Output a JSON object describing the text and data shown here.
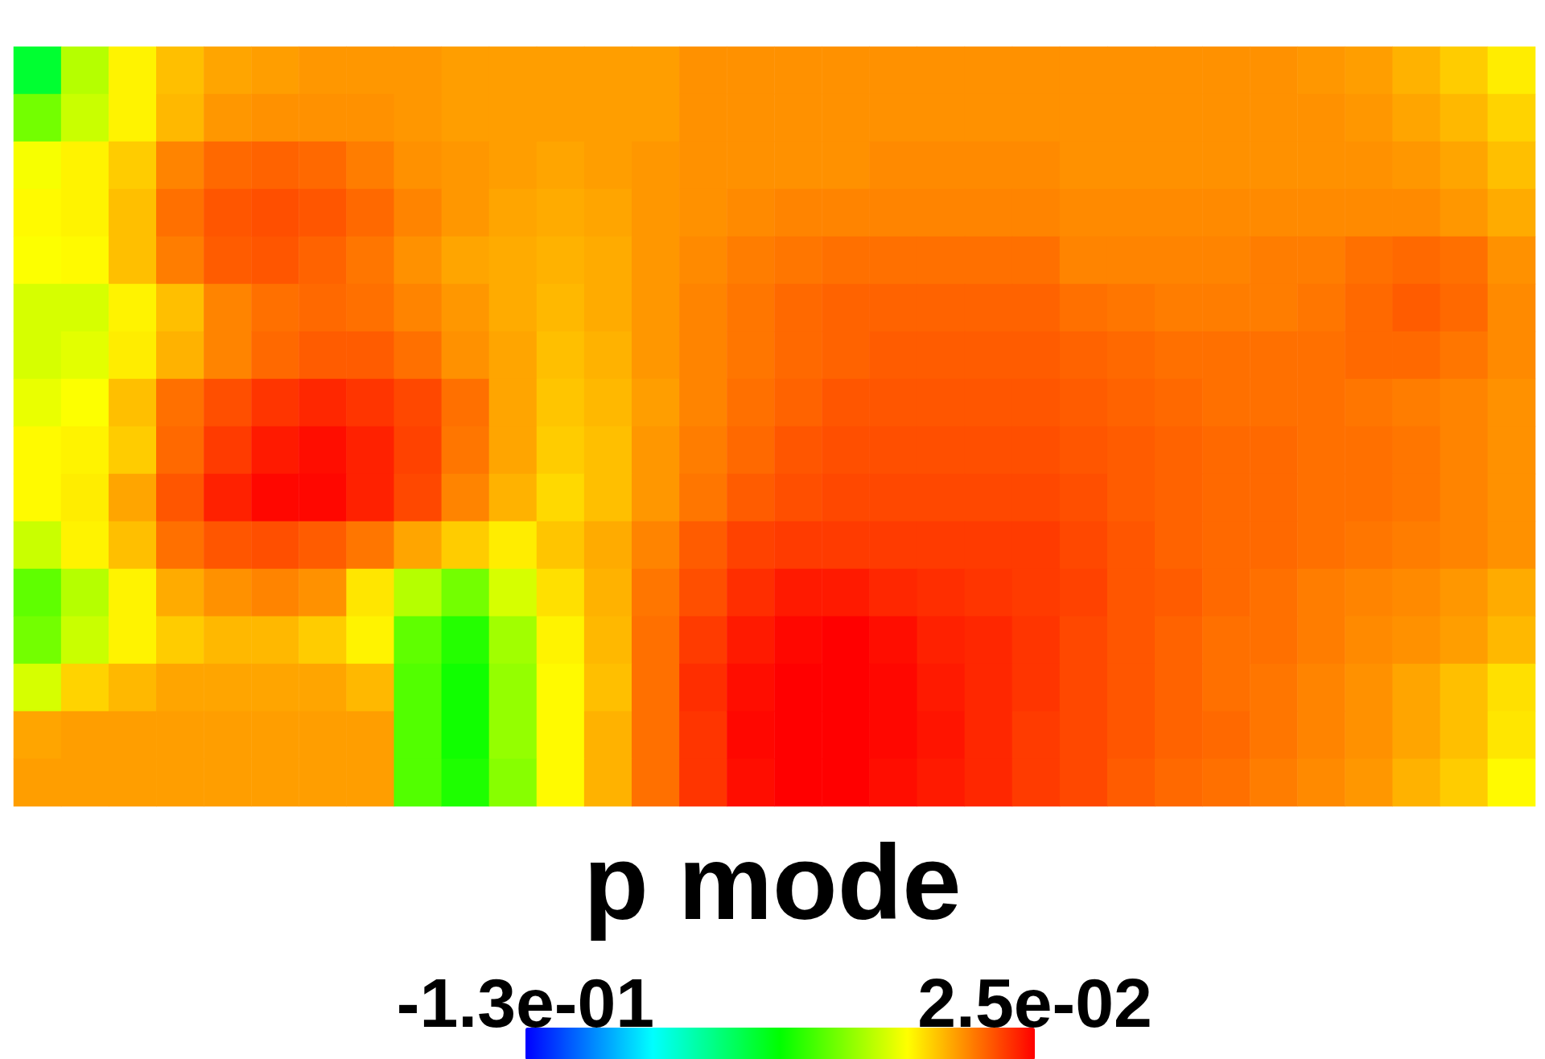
{
  "chart_data": {
    "type": "heatmap",
    "clabel": "p mode",
    "clim": [
      -0.13,
      0.025
    ],
    "cticks": [
      {
        "value": -0.13,
        "label": "-1.3e-01"
      },
      {
        "value": 0.025,
        "label": "2.5e-02"
      }
    ],
    "categories": [
      null,
      null,
      null,
      null,
      null,
      null,
      null,
      null,
      null,
      null,
      null,
      null,
      null,
      null,
      null,
      null,
      null,
      null,
      null,
      null,
      null,
      null,
      null,
      null,
      null,
      null,
      null,
      null,
      null,
      null,
      null,
      null
    ],
    "y_categories": [
      null,
      null,
      null,
      null,
      null,
      null,
      null,
      null,
      null,
      null,
      null,
      null,
      null,
      null,
      null,
      null
    ],
    "cells": [
      [
        -0.06,
        -0.025,
        -0.012,
        -0.004,
        0,
        0.001,
        0.002,
        0.002,
        0.002,
        0.001,
        0.001,
        0.001,
        0.001,
        0.001,
        0.003,
        0.003,
        0.003,
        0.003,
        0.003,
        0.003,
        0.003,
        0.003,
        0.003,
        0.003,
        0.003,
        0.003,
        0.003,
        0.002,
        0.001,
        -0.002,
        -0.006,
        -0.011
      ],
      [
        -0.035,
        -0.022,
        -0.012,
        -0.003,
        0.002,
        0.003,
        0.003,
        0.003,
        0.002,
        0.001,
        0.001,
        0.001,
        0.001,
        0.001,
        0.003,
        0.003,
        0.003,
        0.003,
        0.003,
        0.003,
        0.003,
        0.003,
        0.003,
        0.003,
        0.003,
        0.003,
        0.003,
        0.003,
        0.002,
        0,
        -0.003,
        -0.007
      ],
      [
        -0.015,
        -0.012,
        -0.006,
        0.005,
        0.009,
        0.01,
        0.009,
        0.006,
        0.003,
        0.002,
        0.001,
        0,
        0.001,
        0.002,
        0.003,
        0.003,
        0.003,
        0.003,
        0.004,
        0.004,
        0.004,
        0.004,
        0.003,
        0.003,
        0.003,
        0.003,
        0.003,
        0.003,
        0.003,
        0.002,
        0,
        -0.004
      ],
      [
        -0.013,
        -0.012,
        -0.004,
        0.008,
        0.012,
        0.013,
        0.012,
        0.009,
        0.005,
        0.002,
        0,
        -0.001,
        0,
        0.002,
        0.003,
        0.004,
        0.005,
        0.005,
        0.005,
        0.005,
        0.005,
        0.005,
        0.004,
        0.004,
        0.004,
        0.004,
        0.004,
        0.004,
        0.004,
        0.004,
        0.002,
        -0.001
      ],
      [
        -0.014,
        -0.013,
        -0.004,
        0.006,
        0.011,
        0.012,
        0.01,
        0.007,
        0.003,
        0,
        -0.001,
        -0.002,
        -0.001,
        0.002,
        0.004,
        0.006,
        0.007,
        0.008,
        0.008,
        0.008,
        0.008,
        0.008,
        0.005,
        0.005,
        0.005,
        0.005,
        0.006,
        0.006,
        0.008,
        0.009,
        0.008,
        0.003
      ],
      [
        -0.02,
        -0.02,
        -0.012,
        -0.004,
        0.005,
        0.008,
        0.009,
        0.008,
        0.005,
        0.002,
        -0.001,
        -0.003,
        -0.001,
        0.002,
        0.005,
        0.007,
        0.009,
        0.01,
        0.01,
        0.01,
        0.01,
        0.01,
        0.008,
        0.007,
        0.006,
        0.006,
        0.006,
        0.007,
        0.009,
        0.011,
        0.009,
        0.004
      ],
      [
        -0.02,
        -0.018,
        -0.011,
        -0.002,
        0.005,
        0.009,
        0.011,
        0.011,
        0.008,
        0.003,
        0,
        -0.004,
        -0.002,
        0.002,
        0.005,
        0.007,
        0.009,
        0.01,
        0.011,
        0.011,
        0.011,
        0.011,
        0.01,
        0.009,
        0.008,
        0.008,
        0.008,
        0.008,
        0.009,
        0.009,
        0.007,
        0.004
      ],
      [
        -0.017,
        -0.014,
        -0.004,
        0.008,
        0.013,
        0.017,
        0.019,
        0.017,
        0.014,
        0.008,
        0,
        -0.005,
        -0.003,
        0.001,
        0.005,
        0.008,
        0.01,
        0.012,
        0.012,
        0.012,
        0.012,
        0.012,
        0.011,
        0.01,
        0.009,
        0.008,
        0.008,
        0.008,
        0.007,
        0.006,
        0.005,
        0.003
      ],
      [
        -0.013,
        -0.012,
        -0.006,
        0.009,
        0.016,
        0.021,
        0.023,
        0.02,
        0.015,
        0.007,
        0,
        -0.006,
        -0.004,
        0.002,
        0.006,
        0.009,
        0.012,
        0.013,
        0.013,
        0.013,
        0.013,
        0.013,
        0.012,
        0.011,
        0.01,
        0.009,
        0.009,
        0.008,
        0.008,
        0.007,
        0.005,
        0.003
      ],
      [
        -0.013,
        -0.011,
        0,
        0.012,
        0.02,
        0.024,
        0.024,
        0.02,
        0.014,
        0.005,
        -0.002,
        -0.008,
        -0.004,
        0.002,
        0.007,
        0.011,
        0.013,
        0.014,
        0.014,
        0.014,
        0.014,
        0.014,
        0.013,
        0.011,
        0.01,
        0.009,
        0.009,
        0.008,
        0.008,
        0.007,
        0.005,
        0.003
      ],
      [
        -0.022,
        -0.012,
        -0.004,
        0.008,
        0.012,
        0.013,
        0.011,
        0.007,
        0,
        -0.006,
        -0.011,
        -0.005,
        -0.001,
        0.005,
        0.011,
        0.015,
        0.016,
        0.016,
        0.016,
        0.016,
        0.016,
        0.016,
        0.014,
        0.012,
        0.01,
        0.009,
        0.009,
        0.008,
        0.007,
        0.006,
        0.005,
        0.003
      ],
      [
        -0.038,
        -0.025,
        -0.012,
        -0.001,
        0.003,
        0.005,
        0.003,
        -0.01,
        -0.025,
        -0.035,
        -0.02,
        -0.009,
        -0.002,
        0.007,
        0.013,
        0.018,
        0.021,
        0.021,
        0.019,
        0.018,
        0.017,
        0.016,
        0.015,
        0.012,
        0.011,
        0.009,
        0.008,
        0.006,
        0.005,
        0.004,
        0.002,
        -0.001
      ],
      [
        -0.035,
        -0.022,
        -0.012,
        -0.006,
        -0.003,
        -0.003,
        -0.006,
        -0.012,
        -0.038,
        -0.047,
        -0.028,
        -0.012,
        -0.003,
        0.008,
        0.016,
        0.021,
        0.024,
        0.025,
        0.023,
        0.02,
        0.019,
        0.017,
        0.014,
        0.012,
        0.01,
        0.008,
        0.008,
        0.006,
        0.004,
        0.003,
        0.001,
        -0.003
      ],
      [
        -0.02,
        -0.007,
        -0.003,
        0,
        0,
        0,
        0,
        -0.003,
        -0.04,
        -0.05,
        -0.03,
        -0.013,
        -0.004,
        0.008,
        0.018,
        0.023,
        0.025,
        0.025,
        0.024,
        0.021,
        0.019,
        0.017,
        0.014,
        0.012,
        0.01,
        0.008,
        0.007,
        0.005,
        0.003,
        0,
        -0.004,
        -0.009
      ],
      [
        0,
        0.001,
        0.001,
        0.001,
        0.001,
        0.001,
        0.001,
        0.001,
        -0.04,
        -0.05,
        -0.03,
        -0.013,
        -0.002,
        0.008,
        0.017,
        0.024,
        0.025,
        0.025,
        0.024,
        0.022,
        0.019,
        0.016,
        0.014,
        0.012,
        0.01,
        0.009,
        0.007,
        0.005,
        0.003,
        0,
        -0.004,
        -0.01
      ],
      [
        0.001,
        0.001,
        0.001,
        0.001,
        0.001,
        0.001,
        0.001,
        0.001,
        -0.04,
        -0.048,
        -0.032,
        -0.013,
        -0.002,
        0.008,
        0.017,
        0.023,
        0.025,
        0.025,
        0.023,
        0.021,
        0.019,
        0.016,
        0.014,
        0.011,
        0.009,
        0.008,
        0.006,
        0.004,
        0.002,
        -0.002,
        -0.006,
        -0.013
      ]
    ]
  }
}
